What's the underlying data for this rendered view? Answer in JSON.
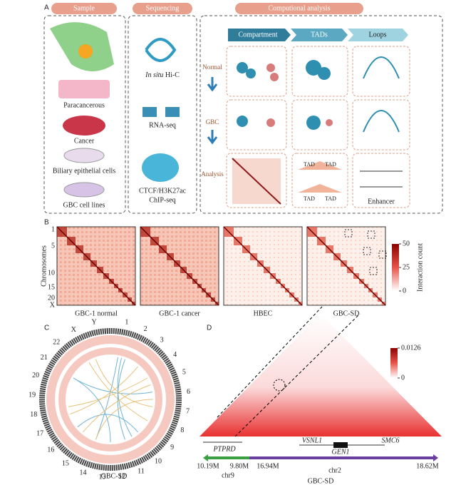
{
  "panel_a": {
    "label": "A",
    "headers": [
      "Sample",
      "Sequencing",
      "Computional analysis"
    ],
    "samples": [
      "Paracancerous",
      "Cancer",
      "Biliary epithelial cells",
      "GBC cell lines"
    ],
    "sequencing": {
      "hic_italic": "In situ",
      "hic_rest": " Hi-C",
      "rna": "RNA-seq",
      "chip_line1": "CTCF/H3K27ac",
      "chip_line2": "ChIP-seq"
    },
    "tabs": [
      "Compartment",
      "TADs",
      "Loops"
    ],
    "rows": [
      "Normal",
      "GBC",
      "Analysis"
    ],
    "tad_labels": [
      "TAD",
      "TAD",
      "TAD",
      "TAD"
    ],
    "enhancer": "Enhancer"
  },
  "panel_b": {
    "label": "B",
    "y_label": "Chromosomes",
    "chromosome_ticks": [
      "1",
      "5",
      "10",
      "15",
      "20",
      "X"
    ],
    "maps": [
      "GBC-1 normal",
      "GBC-1 cancer",
      "HBEC",
      "GBC-SD"
    ],
    "colorbar_label": "Interaction count",
    "colorbar_lim": [
      0,
      50
    ],
    "colorbar_ticks": [
      0,
      25,
      50
    ]
  },
  "panel_c": {
    "label": "C",
    "chromosomes": [
      "1",
      "2",
      "3",
      "4",
      "5",
      "6",
      "7",
      "8",
      "9",
      "10",
      "11",
      "12",
      "13",
      "14",
      "15",
      "16",
      "17",
      "18",
      "19",
      "20",
      "21",
      "22",
      "X",
      "Y"
    ],
    "sample": "GBC-SD"
  },
  "panel_d": {
    "label": "D",
    "colorbar_lim": [
      0,
      0.0126
    ],
    "colorbar_ticks": [
      0,
      0.0126
    ],
    "genes": [
      "PTPRD",
      "VSNL1",
      "GEN1",
      "SMC6"
    ],
    "coords": [
      "10.19M",
      "9.80M",
      "16.94M",
      "18.62M"
    ],
    "chroms": [
      "chr9",
      "chr2"
    ],
    "sample": "GBC-SD"
  }
}
